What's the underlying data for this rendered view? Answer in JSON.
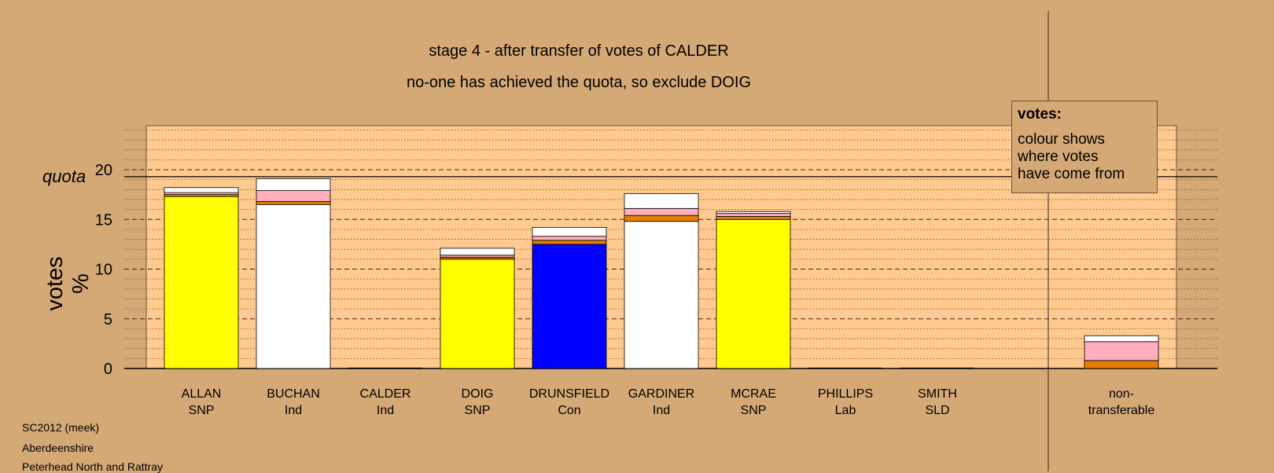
{
  "chart_data": {
    "type": "bar",
    "stacked": true,
    "title": "stage 4 - after transfer of votes of CALDER",
    "subtitle": "no-one has achieved the quota, so exclude DOIG",
    "ylabel": "votes %",
    "xlabel": "",
    "ylim": [
      0,
      25
    ],
    "yticks": [
      0,
      5,
      10,
      15,
      20
    ],
    "quota": 19.3,
    "quota_label": "quota",
    "grid": "dashed at 5, dotted at 1",
    "candidates": [
      {
        "name": "ALLAN",
        "party": "SNP",
        "segments": [
          {
            "color": "#ffff00",
            "value": 17.3
          },
          {
            "color": "#e57e00",
            "value": 0.2
          },
          {
            "color": "#ffaebe",
            "value": 0.2
          },
          {
            "color": "#ffffff",
            "value": 0.5
          }
        ]
      },
      {
        "name": "BUCHAN",
        "party": "Ind",
        "segments": [
          {
            "color": "#ffffff",
            "value": 16.5
          },
          {
            "color": "#e57e00",
            "value": 0.3
          },
          {
            "color": "#ffaebe",
            "value": 1.1
          },
          {
            "color": "#ffffff",
            "value": 1.2
          }
        ]
      },
      {
        "name": "CALDER",
        "party": "Ind",
        "segments": []
      },
      {
        "name": "DOIG",
        "party": "SNP",
        "segments": [
          {
            "color": "#ffff00",
            "value": 11.0
          },
          {
            "color": "#e57e00",
            "value": 0.2
          },
          {
            "color": "#ffaebe",
            "value": 0.2
          },
          {
            "color": "#ffffff",
            "value": 0.7
          }
        ]
      },
      {
        "name": "DRUNSFIELD",
        "party": "Con",
        "segments": [
          {
            "color": "#0000ff",
            "value": 12.5
          },
          {
            "color": "#e57e00",
            "value": 0.4
          },
          {
            "color": "#ffaebe",
            "value": 0.4
          },
          {
            "color": "#ffffff",
            "value": 0.9
          }
        ]
      },
      {
        "name": "GARDINER",
        "party": "Ind",
        "segments": [
          {
            "color": "#ffffff",
            "value": 14.8
          },
          {
            "color": "#e57e00",
            "value": 0.6
          },
          {
            "color": "#ffaebe",
            "value": 0.7
          },
          {
            "color": "#ffffff",
            "value": 1.5
          }
        ]
      },
      {
        "name": "MCRAE",
        "party": "SNP",
        "segments": [
          {
            "color": "#ffff00",
            "value": 15.0
          },
          {
            "color": "#e57e00",
            "value": 0.3
          },
          {
            "color": "#ffaebe",
            "value": 0.3
          },
          {
            "color": "#ffffff",
            "value": 0.2
          }
        ]
      },
      {
        "name": "PHILLIPS",
        "party": "Lab",
        "segments": []
      },
      {
        "name": "SMITH",
        "party": "SLD",
        "segments": []
      },
      {
        "name": "non-",
        "party": "transferable",
        "segments": [
          {
            "color": "#e57e00",
            "value": 0.8
          },
          {
            "color": "#ffaebe",
            "value": 1.9
          },
          {
            "color": "#ffffff",
            "value": 0.6
          }
        ]
      }
    ]
  },
  "legend": {
    "title": "votes:",
    "text": "colour shows\nwhere votes\nhave come from"
  },
  "footer": [
    "SC2012 (meek)",
    "Aberdeenshire",
    "Peterhead North and Rattray"
  ],
  "colors": {
    "background": "#d5a976",
    "plot_area": "#ffc98f",
    "snp": "#ffff00",
    "con": "#0000ff",
    "ind": "#ffffff",
    "transfer_orange": "#e57e00",
    "transfer_pink": "#ffaebe"
  }
}
